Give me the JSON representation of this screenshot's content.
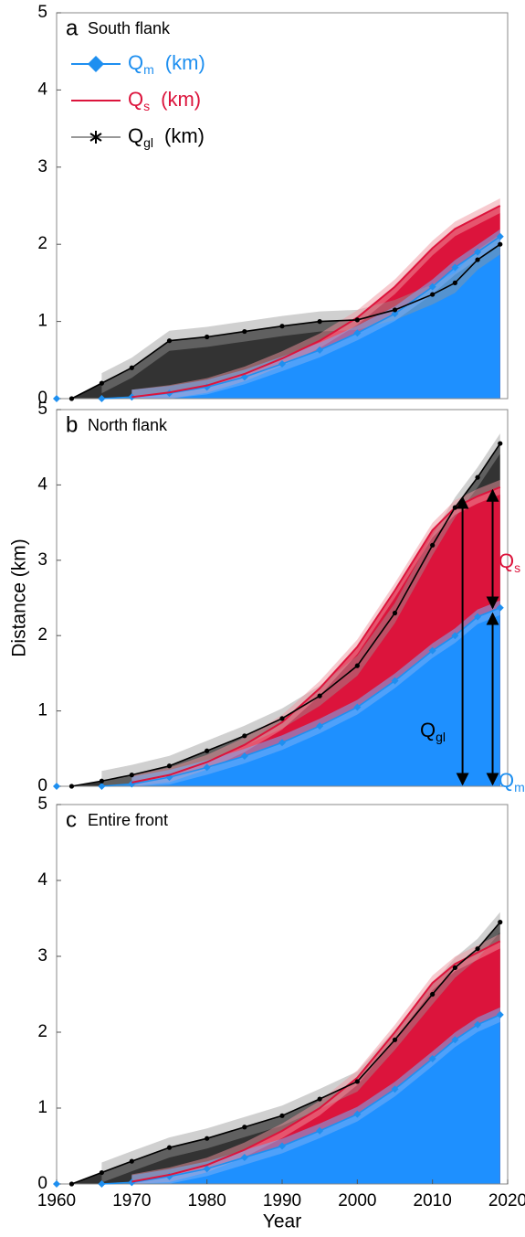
{
  "chart_data": [
    {
      "type": "line",
      "panel_label": "a",
      "title": "South flank",
      "x": [
        1960,
        1962,
        1966,
        1970,
        1975,
        1980,
        1985,
        1990,
        1995,
        2000,
        2005,
        2010,
        2013,
        2016,
        2019
      ],
      "xlim": [
        1960,
        2020
      ],
      "ylim": [
        0,
        5
      ],
      "yticks": [
        0,
        1,
        2,
        3,
        4,
        5
      ],
      "series": [
        {
          "name": "Q",
          "subscript": "m",
          "unit": "(km)",
          "color": "#1e8ff0",
          "marker": "diamond",
          "values": [
            0,
            null,
            0,
            0.02,
            0.07,
            0.15,
            0.28,
            0.45,
            0.63,
            0.85,
            1.1,
            1.45,
            1.7,
            1.9,
            2.1
          ]
        },
        {
          "name": "Q",
          "subscript": "s",
          "unit": "(km)",
          "color": "#dc143c",
          "marker": "none",
          "values": [
            null,
            null,
            null,
            0.02,
            0.08,
            0.17,
            0.32,
            0.52,
            0.75,
            1.05,
            1.45,
            1.95,
            2.2,
            2.35,
            2.5
          ]
        },
        {
          "name": "Q",
          "subscript": "gl",
          "unit": "(km)",
          "color": "#000000",
          "marker": "dot",
          "values": [
            null,
            0,
            0.2,
            0.4,
            0.75,
            0.8,
            0.87,
            0.94,
            1.0,
            1.02,
            1.15,
            1.35,
            1.5,
            1.8,
            2.0
          ]
        }
      ]
    },
    {
      "type": "line",
      "panel_label": "b",
      "title": "North flank",
      "ylabel": "Distance (km)",
      "x": [
        1960,
        1962,
        1966,
        1970,
        1975,
        1980,
        1985,
        1990,
        1995,
        2000,
        2005,
        2010,
        2013,
        2016,
        2019
      ],
      "xlim": [
        1960,
        2020
      ],
      "ylim": [
        0,
        5
      ],
      "yticks": [
        0,
        1,
        2,
        3,
        4,
        5
      ],
      "series": [
        {
          "color": "#1e8ff0",
          "marker": "diamond",
          "values": [
            0,
            null,
            0,
            0.03,
            0.12,
            0.25,
            0.4,
            0.58,
            0.8,
            1.05,
            1.4,
            1.8,
            2.0,
            2.25,
            2.37
          ]
        },
        {
          "color": "#dc143c",
          "marker": "none",
          "values": [
            null,
            null,
            null,
            0.05,
            0.15,
            0.32,
            0.55,
            0.85,
            1.3,
            1.85,
            2.6,
            3.4,
            3.7,
            3.85,
            3.97
          ]
        },
        {
          "color": "#000000",
          "marker": "dot",
          "values": [
            null,
            0,
            0.07,
            0.15,
            0.27,
            0.47,
            0.67,
            0.9,
            1.2,
            1.6,
            2.3,
            3.2,
            3.7,
            4.1,
            4.55
          ]
        }
      ],
      "annotations": [
        {
          "text": "Q",
          "subscript": "s",
          "color": "#dc143c"
        },
        {
          "text": "Q",
          "subscript": "gl",
          "color": "#000000"
        },
        {
          "text": "Q",
          "subscript": "m",
          "color": "#1e8ff0"
        }
      ]
    },
    {
      "type": "line",
      "panel_label": "c",
      "title": "Entire front",
      "xlabel": "Year",
      "x": [
        1960,
        1962,
        1966,
        1970,
        1975,
        1980,
        1985,
        1990,
        1995,
        2000,
        2005,
        2010,
        2013,
        2016,
        2019
      ],
      "xlim": [
        1960,
        2020
      ],
      "ylim": [
        0,
        5
      ],
      "yticks": [
        0,
        1,
        2,
        3,
        4,
        5
      ],
      "xticks": [
        1960,
        1970,
        1980,
        1990,
        2000,
        2010,
        2020
      ],
      "series": [
        {
          "color": "#1e8ff0",
          "marker": "diamond",
          "values": [
            0,
            null,
            0,
            0.02,
            0.1,
            0.2,
            0.35,
            0.5,
            0.7,
            0.92,
            1.25,
            1.65,
            1.9,
            2.1,
            2.23
          ]
        },
        {
          "color": "#dc143c",
          "marker": "none",
          "values": [
            null,
            null,
            null,
            0.03,
            0.12,
            0.25,
            0.45,
            0.7,
            1.0,
            1.4,
            2.0,
            2.65,
            2.9,
            3.05,
            3.2
          ]
        },
        {
          "color": "#000000",
          "marker": "dot",
          "values": [
            null,
            0,
            0.15,
            0.3,
            0.48,
            0.6,
            0.75,
            0.9,
            1.12,
            1.35,
            1.9,
            2.5,
            2.85,
            3.1,
            3.45
          ]
        }
      ]
    }
  ]
}
